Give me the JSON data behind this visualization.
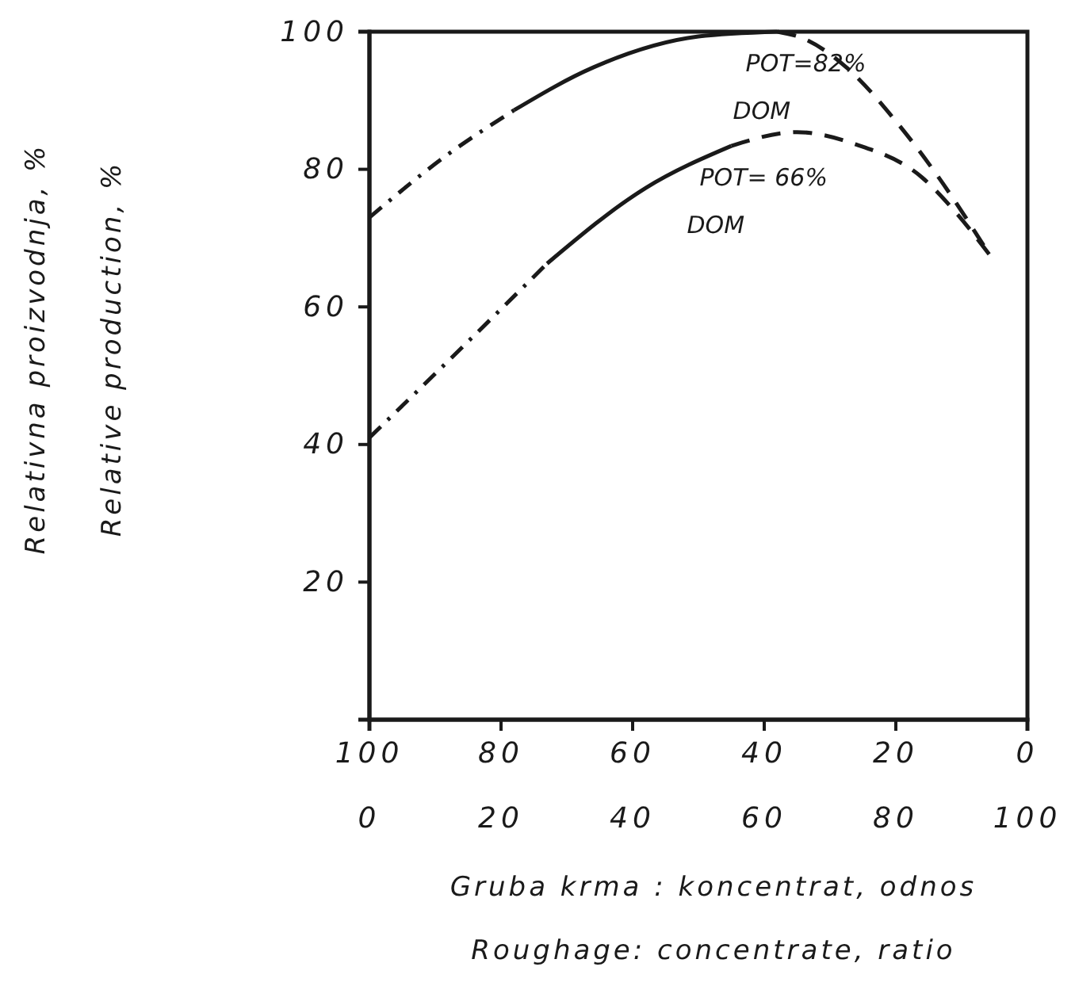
{
  "chart_data": {
    "type": "line",
    "xlabel": "Gruba krma : koncentrat, odnos\nRoughage: concentrate, ratio",
    "ylabel": "Relativna proizvodnja, %\nRelative production, %",
    "xlim": [
      0,
      100
    ],
    "xticks": [
      0,
      20,
      40,
      60,
      80,
      100
    ],
    "x2lim": [
      100,
      0
    ],
    "x2ticks": [
      100,
      80,
      60,
      40,
      20,
      0
    ],
    "ylim": [
      0,
      100
    ],
    "yticks": [
      20,
      40,
      60,
      80,
      100
    ],
    "grid": false,
    "marker": "none",
    "series": [
      {
        "color": "#1a1a1a",
        "line_style": "dotted",
        "x": [
          0,
          11.4,
          22
        ],
        "values": [
          73,
          81.8,
          88.6
        ]
      },
      {
        "name": "POT=82%\nDOM",
        "color": "#1a1a1a",
        "line_style": "solid",
        "x": [
          22,
          34,
          50,
          62
        ],
        "values": [
          88.6,
          94.8,
          99.3,
          100
        ]
      },
      {
        "color": "#1a1a1a",
        "line_style": "dashed",
        "x": [
          62,
          66,
          72.5,
          80,
          86,
          94.3
        ],
        "values": [
          100,
          99,
          94.8,
          87,
          79.5,
          67.5
        ]
      },
      {
        "color": "#1a1a1a",
        "line_style": "dotted",
        "x": [
          0,
          11.4,
          27
        ],
        "values": [
          41,
          51.6,
          66.3
        ]
      },
      {
        "name": "POT= 66%\nDOM",
        "color": "#1a1a1a",
        "line_style": "solid",
        "x": [
          27,
          42,
          55
        ],
        "values": [
          66.3,
          77.3,
          83.4
        ]
      },
      {
        "color": "#1a1a1a",
        "line_style": "dashed",
        "x": [
          55,
          65,
          74,
          84,
          88.6,
          94.3
        ],
        "values": [
          83.4,
          85.4,
          83.6,
          78.8,
          74.3,
          67.5
        ]
      }
    ]
  }
}
